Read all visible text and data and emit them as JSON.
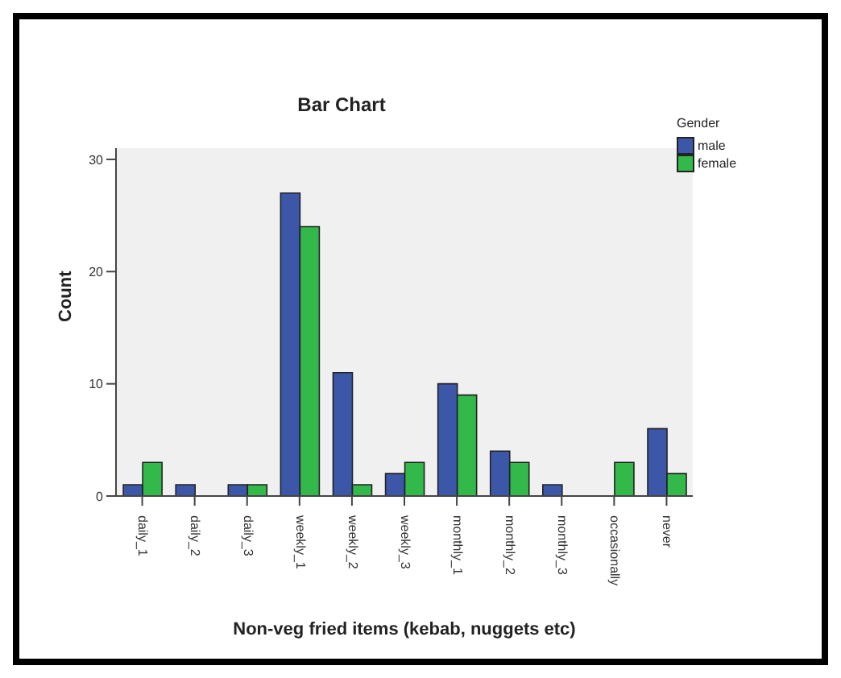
{
  "chart_data": {
    "type": "bar",
    "title": "Bar Chart",
    "xlabel": "Non-veg fried items (kebab, nuggets etc)",
    "ylabel": "Count",
    "legend_title": "Gender",
    "categories": [
      "daily_1",
      "daily_2",
      "daily_3",
      "weekly_1",
      "weekly_2",
      "weekly_3",
      "monthly_1",
      "monthly_2",
      "monthly_3",
      "occasionally",
      "never"
    ],
    "series": [
      {
        "name": "male",
        "color": "#3c56a8",
        "values": [
          1,
          1,
          1,
          27,
          11,
          2,
          10,
          4,
          1,
          0,
          6
        ]
      },
      {
        "name": "female",
        "color": "#33b84a",
        "values": [
          3,
          0,
          1,
          24,
          1,
          3,
          9,
          3,
          0,
          3,
          2
        ]
      }
    ],
    "ylim": [
      0,
      31
    ],
    "yticks": [
      0,
      10,
      20,
      30
    ],
    "grid": false,
    "legend": "top right"
  }
}
